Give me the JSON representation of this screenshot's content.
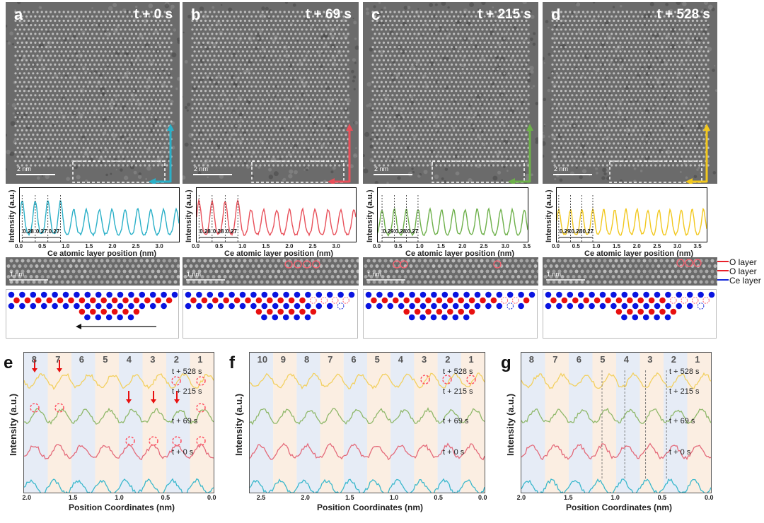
{
  "figure": {
    "panels_top": [
      {
        "letter": "a",
        "time": "t + 0 s",
        "scalebar": "2 nm",
        "color": "#2ab0c8",
        "spacings": [
          "0.28",
          "0.27",
          "0.27"
        ]
      },
      {
        "letter": "b",
        "time": "t + 69 s",
        "scalebar": "2 nm",
        "color": "#e8505a",
        "spacings": [
          "0.28",
          "0.28",
          "0.27"
        ]
      },
      {
        "letter": "c",
        "time": "t + 215 s",
        "scalebar": "2 nm",
        "color": "#6db04a",
        "spacings": [
          "0.29",
          "0.28",
          "0.27"
        ]
      },
      {
        "letter": "d",
        "time": "t + 528 s",
        "scalebar": "2 nm",
        "color": "#f2c81e",
        "spacings": [
          "0.29",
          "0.28",
          "0.27"
        ]
      }
    ],
    "profile_axis": {
      "xlabel": "Ce atomic layer position (nm)",
      "ylabel": "Intensity (a.u.)",
      "ticks": [
        [
          "0.0",
          "0.5",
          "1.0",
          "1.5",
          "2.0",
          "2.5",
          "3.0"
        ],
        [
          "0.0",
          "0.5",
          "1.0",
          "1.5",
          "2.0",
          "2.5",
          "3.0"
        ],
        [
          "0.0",
          "0.5",
          "1.0",
          "1.5",
          "2.0",
          "2.5",
          "3.0",
          "3.5"
        ],
        [
          "0.0",
          "0.5",
          "1.0",
          "1.5",
          "2.0",
          "2.5",
          "3.0",
          "3.5"
        ]
      ]
    },
    "strip_scalebar": "1 nm",
    "layer_labels": {
      "o1": "O layer",
      "o2": "O layer",
      "ce": "Ce layer",
      "o_color": "#e8202a",
      "ce_color": "#1428d8"
    },
    "bottom_panels": [
      {
        "letter": "e",
        "columns": [
          "8",
          "7",
          "6",
          "5",
          "4",
          "3",
          "2",
          "1"
        ],
        "xticks": [
          "2.0",
          "1.5",
          "1.0",
          "0.5",
          "0.0"
        ]
      },
      {
        "letter": "f",
        "columns": [
          "10",
          "9",
          "8",
          "7",
          "6",
          "5",
          "4",
          "3",
          "2",
          "1"
        ],
        "xticks": [
          "2.5",
          "2.0",
          "1.5",
          "1.0",
          "0.5",
          "0.0"
        ]
      },
      {
        "letter": "g",
        "columns": [
          "8",
          "7",
          "6",
          "5",
          "4",
          "3",
          "2",
          "1"
        ],
        "xticks": [
          "2.0",
          "1.5",
          "1.0",
          "0.5",
          "0.0"
        ]
      }
    ],
    "series_labels": [
      "t + 528 s",
      "t + 215 s",
      "t + 69 s",
      "t + 0 s"
    ],
    "bottom_xlabel": "Position Coordinates (nm)",
    "bottom_ylabel": "Intensity (a.u.)"
  },
  "chart_data": [
    {
      "type": "line",
      "title": "a: t + 0 s",
      "xlabel": "Ce atomic layer position (nm)",
      "ylabel": "Intensity (a.u.)",
      "xlim": [
        0,
        3.4
      ],
      "peak_positions": [
        0.05,
        0.33,
        0.6,
        0.87,
        1.15,
        1.42,
        1.7,
        1.97,
        2.25,
        2.52,
        2.8,
        3.07,
        3.34
      ],
      "annotations": [
        "0.28",
        "0.27",
        "0.27"
      ]
    },
    {
      "type": "line",
      "title": "b: t + 69 s",
      "xlabel": "Ce atomic layer position (nm)",
      "ylabel": "Intensity (a.u.)",
      "xlim": [
        0,
        3.4
      ],
      "peak_positions": [
        0.05,
        0.33,
        0.61,
        0.88,
        1.16,
        1.43,
        1.71,
        1.98,
        2.26,
        2.53,
        2.81,
        3.08,
        3.36
      ],
      "annotations": [
        "0.28",
        "0.28",
        "0.27"
      ]
    },
    {
      "type": "line",
      "title": "c: t + 215 s",
      "xlabel": "Ce atomic layer position (nm)",
      "ylabel": "Intensity (a.u.)",
      "xlim": [
        0,
        3.5
      ],
      "peak_positions": [
        0.1,
        0.39,
        0.67,
        0.94,
        1.22,
        1.49,
        1.77,
        2.04,
        2.32,
        2.59,
        2.87,
        3.14,
        3.42
      ],
      "annotations": [
        "0.29",
        "0.28",
        "0.27"
      ]
    },
    {
      "type": "line",
      "title": "d: t + 528 s",
      "xlabel": "Ce atomic layer position (nm)",
      "ylabel": "Intensity (a.u.)",
      "xlim": [
        0,
        3.7
      ],
      "peak_positions": [
        0.05,
        0.34,
        0.62,
        0.89,
        1.16,
        1.43,
        1.71,
        1.98,
        2.25,
        2.52,
        2.8,
        3.07,
        3.34,
        3.62
      ],
      "annotations": [
        "0.29",
        "0.28",
        "0.27"
      ]
    },
    {
      "type": "line",
      "title": "e",
      "xlabel": "Position Coordinates (nm)",
      "ylabel": "Intensity (a.u.)",
      "xlim": [
        2.05,
        0.0
      ],
      "series": [
        {
          "name": "t + 528 s"
        },
        {
          "name": "t + 215 s"
        },
        {
          "name": "t + 69 s"
        },
        {
          "name": "t + 0 s"
        }
      ]
    },
    {
      "type": "line",
      "title": "f",
      "xlabel": "Position Coordinates (nm)",
      "ylabel": "Intensity (a.u.)",
      "xlim": [
        2.65,
        0.0
      ],
      "series": [
        {
          "name": "t + 528 s"
        },
        {
          "name": "t + 215 s"
        },
        {
          "name": "t + 69 s"
        },
        {
          "name": "t + 0 s"
        }
      ]
    },
    {
      "type": "line",
      "title": "g",
      "xlabel": "Position Coordinates (nm)",
      "ylabel": "Intensity (a.u.)",
      "xlim": [
        2.02,
        0.0
      ],
      "series": [
        {
          "name": "t + 528 s"
        },
        {
          "name": "t + 215 s"
        },
        {
          "name": "t + 69 s"
        },
        {
          "name": "t + 0 s"
        }
      ]
    }
  ]
}
